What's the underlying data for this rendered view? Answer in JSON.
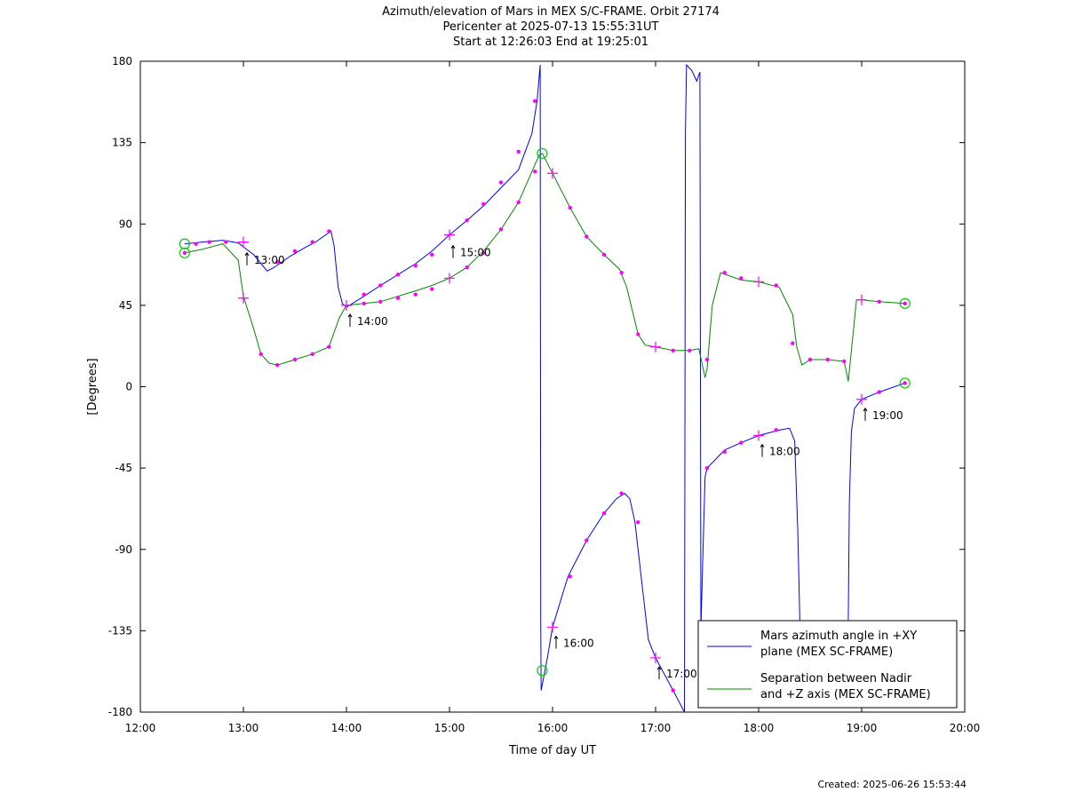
{
  "header": {
    "title": "Azimuth/elevation of Mars in MEX S/C-FRAME.  Orbit 27174",
    "subtitle1": "Pericenter at 2025-07-13 15:55:31UT",
    "subtitle2": "Start at 12:26:03 End at 19:25:01"
  },
  "footer": {
    "created": "Created: 2025-06-26 15:53:44"
  },
  "chart_data": {
    "type": "line",
    "title": "Azimuth/elevation of Mars in MEX S/C-FRAME.  Orbit 27174",
    "xlabel": "Time of day UT",
    "ylabel": "[Degrees]",
    "xlim": [
      12,
      20
    ],
    "ylim": [
      -180,
      180
    ],
    "xticks": [
      12,
      13,
      14,
      15,
      16,
      17,
      18,
      19,
      20
    ],
    "xtick_labels": [
      "12:00",
      "13:00",
      "14:00",
      "15:00",
      "16:00",
      "17:00",
      "18:00",
      "19:00",
      "20:00"
    ],
    "yticks": [
      -180,
      -135,
      -90,
      -45,
      0,
      45,
      90,
      135,
      180
    ],
    "ytick_labels": [
      "-180",
      "-135",
      "-90",
      "-45",
      "0",
      "45",
      "90",
      "135",
      "180"
    ],
    "grid": false,
    "legend_position": "bottom-right",
    "series": [
      {
        "name": "Mars azimuth angle in +XY plane (MEX SC-FRAME)",
        "legend_lines": [
          "Mars azimuth angle in +XY",
          "plane (MEX SC-FRAME)"
        ],
        "color": "#0000ff",
        "points": [
          [
            12.43,
            79
          ],
          [
            12.6,
            80
          ],
          [
            12.8,
            81
          ],
          [
            12.95,
            79.5
          ],
          [
            13.1,
            73
          ],
          [
            13.23,
            64
          ],
          [
            13.3,
            66
          ],
          [
            13.45,
            72
          ],
          [
            13.6,
            77
          ],
          [
            13.7,
            80
          ],
          [
            13.85,
            86
          ],
          [
            13.88,
            78
          ],
          [
            13.92,
            55
          ],
          [
            13.96,
            46
          ],
          [
            14.0,
            44
          ],
          [
            14.17,
            50
          ],
          [
            14.33,
            56
          ],
          [
            14.5,
            62
          ],
          [
            14.67,
            68
          ],
          [
            14.83,
            75
          ],
          [
            15.0,
            84
          ],
          [
            15.17,
            92
          ],
          [
            15.33,
            100
          ],
          [
            15.5,
            110
          ],
          [
            15.67,
            120
          ],
          [
            15.8,
            140
          ],
          [
            15.85,
            158
          ],
          [
            15.88,
            178
          ],
          [
            15.885,
            -130
          ],
          [
            15.89,
            -168
          ],
          [
            15.95,
            -150
          ],
          [
            16.0,
            -133
          ],
          [
            16.15,
            -105
          ],
          [
            16.33,
            -85
          ],
          [
            16.5,
            -70
          ],
          [
            16.62,
            -62
          ],
          [
            16.7,
            -59
          ],
          [
            16.75,
            -62
          ],
          [
            16.8,
            -75
          ],
          [
            16.87,
            -110
          ],
          [
            16.93,
            -140
          ],
          [
            17.0,
            -150
          ],
          [
            17.17,
            -168
          ],
          [
            17.28,
            -180
          ],
          [
            17.29,
            140
          ],
          [
            17.3,
            178
          ],
          [
            17.35,
            175
          ],
          [
            17.4,
            169
          ],
          [
            17.43,
            174
          ],
          [
            17.44,
            -135
          ],
          [
            17.46,
            -90
          ],
          [
            17.48,
            -50
          ],
          [
            17.5,
            -45
          ],
          [
            17.67,
            -35
          ],
          [
            17.83,
            -31
          ],
          [
            18.0,
            -27
          ],
          [
            18.2,
            -24
          ],
          [
            18.3,
            -23
          ],
          [
            18.35,
            -30
          ],
          [
            18.38,
            -80
          ],
          [
            18.4,
            -130
          ],
          [
            18.87,
            -130
          ],
          [
            18.88,
            -65
          ],
          [
            18.9,
            -25
          ],
          [
            18.93,
            -12
          ],
          [
            19.0,
            -7
          ],
          [
            19.17,
            -3
          ],
          [
            19.42,
            2
          ]
        ]
      },
      {
        "name": "Separation between Nadir and +Z axis (MEX SC-FRAME)",
        "legend_lines": [
          "Separation between Nadir",
          "and +Z axis (MEX SC-FRAME)"
        ],
        "color": "#008800",
        "points": [
          [
            12.43,
            74
          ],
          [
            12.6,
            76
          ],
          [
            12.8,
            79
          ],
          [
            12.95,
            70
          ],
          [
            13.0,
            50
          ],
          [
            13.1,
            32
          ],
          [
            13.17,
            18
          ],
          [
            13.25,
            13
          ],
          [
            13.33,
            12
          ],
          [
            13.5,
            15
          ],
          [
            13.67,
            18
          ],
          [
            13.83,
            22
          ],
          [
            13.93,
            38
          ],
          [
            14.0,
            45
          ],
          [
            14.17,
            46
          ],
          [
            14.33,
            47
          ],
          [
            14.5,
            50
          ],
          [
            14.67,
            53
          ],
          [
            14.83,
            56
          ],
          [
            15.0,
            60
          ],
          [
            15.17,
            66
          ],
          [
            15.33,
            75
          ],
          [
            15.5,
            87
          ],
          [
            15.67,
            102
          ],
          [
            15.8,
            119
          ],
          [
            15.87,
            128
          ],
          [
            15.9,
            129
          ],
          [
            16.0,
            118
          ],
          [
            16.17,
            99
          ],
          [
            16.33,
            83
          ],
          [
            16.5,
            73
          ],
          [
            16.65,
            65
          ],
          [
            16.72,
            55
          ],
          [
            16.83,
            29
          ],
          [
            16.9,
            23
          ],
          [
            17.0,
            22
          ],
          [
            17.17,
            20
          ],
          [
            17.33,
            20
          ],
          [
            17.42,
            21
          ],
          [
            17.48,
            5
          ],
          [
            17.5,
            10
          ],
          [
            17.55,
            45
          ],
          [
            17.63,
            63
          ],
          [
            17.83,
            59
          ],
          [
            18.0,
            58
          ],
          [
            18.2,
            55
          ],
          [
            18.33,
            40
          ],
          [
            18.37,
            22
          ],
          [
            18.42,
            12
          ],
          [
            18.5,
            15
          ],
          [
            18.67,
            15
          ],
          [
            18.83,
            14
          ],
          [
            18.87,
            3
          ],
          [
            18.9,
            20
          ],
          [
            18.95,
            48
          ],
          [
            19.0,
            48
          ],
          [
            19.17,
            47
          ],
          [
            19.42,
            46
          ]
        ]
      }
    ],
    "dot_markers": {
      "color": "#ff00ff",
      "points": [
        [
          12.43,
          74
        ],
        [
          12.54,
          79
        ],
        [
          12.67,
          80
        ],
        [
          12.83,
          80
        ],
        [
          13.17,
          18
        ],
        [
          13.33,
          12
        ],
        [
          13.5,
          15
        ],
        [
          13.67,
          18
        ],
        [
          13.83,
          22
        ],
        [
          13.33,
          69
        ],
        [
          13.5,
          75
        ],
        [
          13.67,
          80
        ],
        [
          13.83,
          86
        ],
        [
          14.17,
          51
        ],
        [
          14.33,
          56
        ],
        [
          14.5,
          62
        ],
        [
          14.67,
          67
        ],
        [
          14.83,
          73
        ],
        [
          15.17,
          92
        ],
        [
          15.33,
          101
        ],
        [
          15.5,
          113
        ],
        [
          15.67,
          130
        ],
        [
          15.83,
          158
        ],
        [
          14.17,
          46
        ],
        [
          14.33,
          47
        ],
        [
          14.5,
          49
        ],
        [
          14.67,
          51
        ],
        [
          14.83,
          54
        ],
        [
          15.17,
          66
        ],
        [
          15.33,
          74
        ],
        [
          15.5,
          87
        ],
        [
          15.67,
          102
        ],
        [
          15.83,
          119
        ],
        [
          16.17,
          99
        ],
        [
          16.33,
          83
        ],
        [
          16.5,
          73
        ],
        [
          16.67,
          63
        ],
        [
          16.83,
          29
        ],
        [
          17.17,
          20
        ],
        [
          17.33,
          20
        ],
        [
          16.17,
          -105
        ],
        [
          16.33,
          -85
        ],
        [
          16.5,
          -70
        ],
        [
          16.67,
          -59
        ],
        [
          16.83,
          -75
        ],
        [
          17.17,
          -168
        ],
        [
          17.5,
          -45
        ],
        [
          17.67,
          -36
        ],
        [
          17.83,
          -31
        ],
        [
          18.17,
          -24
        ],
        [
          17.5,
          15
        ],
        [
          17.67,
          63
        ],
        [
          17.83,
          60
        ],
        [
          18.17,
          56
        ],
        [
          18.33,
          24
        ],
        [
          18.5,
          15
        ],
        [
          18.67,
          15
        ],
        [
          18.83,
          14
        ],
        [
          19.17,
          47
        ],
        [
          19.17,
          -3
        ],
        [
          19.42,
          2
        ],
        [
          19.42,
          46
        ]
      ]
    },
    "cross_markers": {
      "color": "#ff00ff",
      "points": [
        [
          13.0,
          80
        ],
        [
          13.0,
          49
        ],
        [
          14.0,
          45
        ],
        [
          15.0,
          84
        ],
        [
          15.0,
          60
        ],
        [
          16.0,
          118
        ],
        [
          16.0,
          -133
        ],
        [
          17.0,
          -150
        ],
        [
          17.0,
          22
        ],
        [
          18.0,
          -27
        ],
        [
          18.0,
          58
        ],
        [
          19.0,
          -7
        ],
        [
          19.0,
          48
        ]
      ]
    },
    "circle_markers": {
      "color": "#00cc00",
      "points": [
        [
          12.43,
          79
        ],
        [
          12.43,
          74
        ],
        [
          15.9,
          129
        ],
        [
          15.9,
          -157
        ],
        [
          19.42,
          2
        ],
        [
          19.42,
          46
        ]
      ]
    },
    "hour_annotations": [
      {
        "x": 13.0,
        "y": 74,
        "label": "13:00"
      },
      {
        "x": 14.0,
        "y": 40,
        "label": "14:00"
      },
      {
        "x": 15.0,
        "y": 78,
        "label": "15:00"
      },
      {
        "x": 16.0,
        "y": -138,
        "label": "16:00"
      },
      {
        "x": 17.0,
        "y": -155,
        "label": "17:00"
      },
      {
        "x": 18.0,
        "y": -32,
        "label": "18:00"
      },
      {
        "x": 19.0,
        "y": -12,
        "label": "19:00"
      }
    ]
  }
}
